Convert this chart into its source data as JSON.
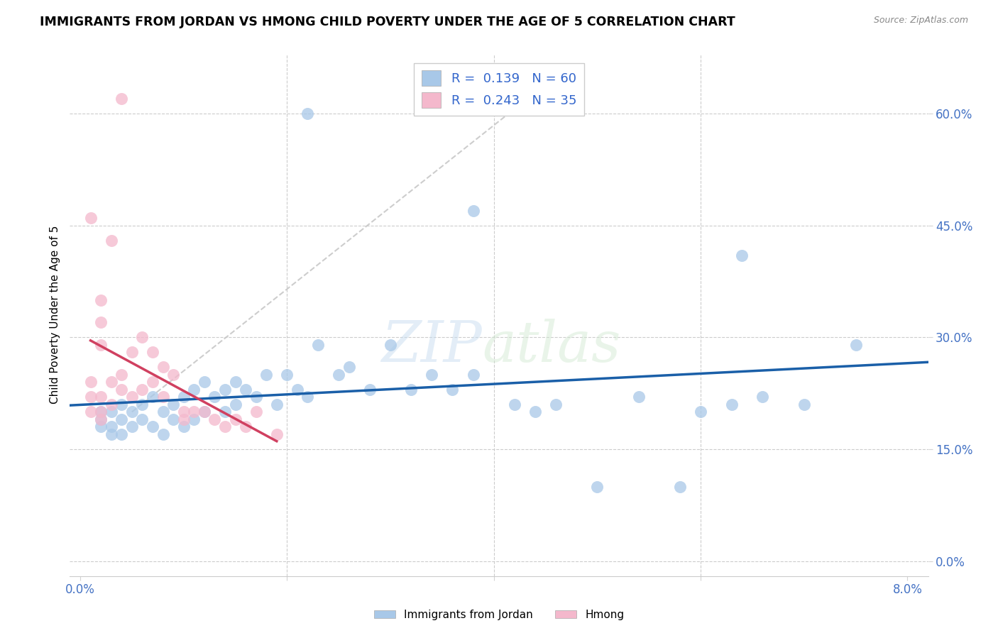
{
  "title": "IMMIGRANTS FROM JORDAN VS HMONG CHILD POVERTY UNDER THE AGE OF 5 CORRELATION CHART",
  "source": "Source: ZipAtlas.com",
  "ylabel": "Child Poverty Under the Age of 5",
  "legend_label1": "Immigrants from Jordan",
  "legend_label2": "Hmong",
  "R1": 0.139,
  "N1": 60,
  "R2": 0.243,
  "N2": 35,
  "color_blue": "#a8c8e8",
  "color_pink": "#f4b8cc",
  "color_blue_line": "#1a5fa8",
  "color_pink_line": "#d04060",
  "color_gray_diag": "#c8c8c8",
  "watermark_color": "#c8ddf0",
  "jordan_x": [
    0.002,
    0.002,
    0.002,
    0.003,
    0.003,
    0.003,
    0.004,
    0.004,
    0.004,
    0.005,
    0.005,
    0.006,
    0.006,
    0.007,
    0.007,
    0.008,
    0.008,
    0.009,
    0.009,
    0.01,
    0.01,
    0.011,
    0.011,
    0.012,
    0.012,
    0.013,
    0.014,
    0.014,
    0.015,
    0.015,
    0.016,
    0.017,
    0.018,
    0.019,
    0.02,
    0.021,
    0.022,
    0.023,
    0.025,
    0.026,
    0.028,
    0.03,
    0.032,
    0.034,
    0.036,
    0.038,
    0.042,
    0.044,
    0.046,
    0.05,
    0.054,
    0.058,
    0.06,
    0.063,
    0.066,
    0.07,
    0.075,
    0.022,
    0.038,
    0.064
  ],
  "jordan_y": [
    0.2,
    0.19,
    0.18,
    0.2,
    0.18,
    0.17,
    0.21,
    0.19,
    0.17,
    0.2,
    0.18,
    0.21,
    0.19,
    0.22,
    0.18,
    0.2,
    0.17,
    0.21,
    0.19,
    0.22,
    0.18,
    0.23,
    0.19,
    0.24,
    0.2,
    0.22,
    0.23,
    0.2,
    0.24,
    0.21,
    0.23,
    0.22,
    0.25,
    0.21,
    0.25,
    0.23,
    0.22,
    0.29,
    0.25,
    0.26,
    0.23,
    0.29,
    0.23,
    0.25,
    0.23,
    0.25,
    0.21,
    0.2,
    0.21,
    0.1,
    0.22,
    0.1,
    0.2,
    0.21,
    0.22,
    0.21,
    0.29,
    0.6,
    0.47,
    0.41
  ],
  "hmong_x": [
    0.001,
    0.001,
    0.001,
    0.002,
    0.002,
    0.002,
    0.003,
    0.003,
    0.004,
    0.004,
    0.005,
    0.005,
    0.006,
    0.006,
    0.007,
    0.007,
    0.008,
    0.008,
    0.009,
    0.01,
    0.01,
    0.011,
    0.012,
    0.013,
    0.014,
    0.015,
    0.016,
    0.017,
    0.019,
    0.001,
    0.002,
    0.002,
    0.002,
    0.003,
    0.004
  ],
  "hmong_y": [
    0.2,
    0.22,
    0.24,
    0.2,
    0.22,
    0.19,
    0.24,
    0.21,
    0.23,
    0.25,
    0.22,
    0.28,
    0.23,
    0.3,
    0.24,
    0.28,
    0.26,
    0.22,
    0.25,
    0.2,
    0.19,
    0.2,
    0.2,
    0.19,
    0.18,
    0.19,
    0.18,
    0.2,
    0.17,
    0.46,
    0.35,
    0.32,
    0.29,
    0.43,
    0.62
  ],
  "yticks": [
    0.0,
    0.15,
    0.3,
    0.45,
    0.6
  ],
  "ytick_labels": [
    "0.0%",
    "15.0%",
    "30.0%",
    "45.0%",
    "60.0%"
  ],
  "xticks": [
    0.0,
    0.02,
    0.04,
    0.06,
    0.08
  ],
  "xtick_labels": [
    "0.0%",
    "",
    "",
    "",
    "8.0%"
  ],
  "xlim": [
    -0.001,
    0.082
  ],
  "ylim": [
    -0.02,
    0.68
  ]
}
